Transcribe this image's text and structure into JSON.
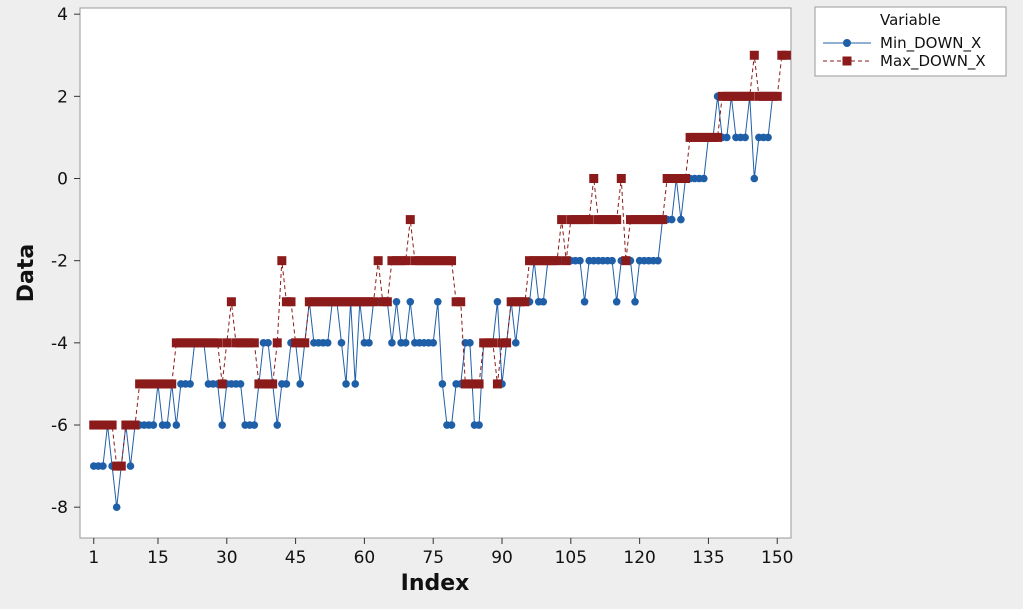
{
  "chart_data": {
    "type": "line",
    "title": "",
    "xlabel": "Index",
    "ylabel": "Data",
    "xlim": [
      -2,
      153
    ],
    "ylim": [
      -8.75,
      4.15
    ],
    "xticks": [
      1,
      15,
      30,
      45,
      60,
      75,
      90,
      105,
      120,
      135,
      150
    ],
    "yticks": [
      -8,
      -6,
      -4,
      -2,
      0,
      2,
      4
    ],
    "grid": false,
    "legend": {
      "title": "Variable",
      "position": "top-right"
    },
    "series": [
      {
        "name": "Min_DOWN_X",
        "color": "#1f5fa8",
        "marker": "circle",
        "linestyle": "solid",
        "values": [
          -7,
          -7,
          -7,
          -6,
          -7,
          -8,
          -7,
          -6,
          -7,
          -6,
          -6,
          -6,
          -6,
          -6,
          -5,
          -6,
          -6,
          -5,
          -6,
          -5,
          -5,
          -5,
          -4,
          -4,
          -4,
          -5,
          -5,
          -5,
          -6,
          -5,
          -5,
          -5,
          -5,
          -6,
          -6,
          -6,
          -5,
          -4,
          -4,
          -5,
          -6,
          -5,
          -5,
          -4,
          -4,
          -5,
          -4,
          -3,
          -4,
          -4,
          -4,
          -4,
          -3,
          -3,
          -4,
          -5,
          -3,
          -5,
          -3,
          -4,
          -4,
          -3,
          -3,
          -3,
          -3,
          -4,
          -3,
          -4,
          -4,
          -3,
          -4,
          -4,
          -4,
          -4,
          -4,
          -3,
          -5,
          -6,
          -6,
          -5,
          -5,
          -4,
          -4,
          -6,
          -6,
          -4,
          -4,
          -4,
          -3,
          -5,
          -4,
          -3,
          -4,
          -3,
          -3,
          -3,
          -2,
          -3,
          -3,
          -2,
          -2,
          -2,
          -2,
          -2,
          -2,
          -2,
          -2,
          -3,
          -2,
          -2,
          -2,
          -2,
          -2,
          -2,
          -3,
          -2,
          -2,
          -2,
          -3,
          -2,
          -2,
          -2,
          -2,
          -2,
          -1,
          -1,
          -1,
          0,
          -1,
          0,
          0,
          0,
          0,
          0,
          1,
          1,
          2,
          1,
          1,
          2,
          1,
          1,
          1,
          2,
          0,
          1,
          1,
          1,
          2
        ]
      },
      {
        "name": "Max_DOWN_X",
        "color": "#8b1a1a",
        "marker": "square",
        "linestyle": "dashed",
        "values": [
          -6,
          -6,
          -6,
          -6,
          -6,
          -7,
          -7,
          -6,
          -6,
          -6,
          -5,
          -5,
          -5,
          -5,
          -5,
          -5,
          -5,
          -5,
          -4,
          -4,
          -4,
          -4,
          -4,
          -4,
          -4,
          -4,
          -4,
          -4,
          -5,
          -4,
          -3,
          -4,
          -4,
          -4,
          -4,
          -4,
          -5,
          -5,
          -5,
          -5,
          -4,
          -2,
          -3,
          -3,
          -4,
          -4,
          -4,
          -3,
          -3,
          -3,
          -3,
          -3,
          -3,
          -3,
          -3,
          -3,
          -3,
          -3,
          -3,
          -3,
          -3,
          -3,
          -2,
          -3,
          -3,
          -2,
          -2,
          -2,
          -2,
          -1,
          -2,
          -2,
          -2,
          -2,
          -2,
          -2,
          -2,
          -2,
          -2,
          -3,
          -3,
          -5,
          -5,
          -5,
          -5,
          -4,
          -4,
          -4,
          -5,
          -4,
          -4,
          -3,
          -3,
          -3,
          -3,
          -2,
          -2,
          -2,
          -2,
          -2,
          -2,
          -2,
          -1,
          -2,
          -1,
          -1,
          -1,
          -1,
          -1,
          0,
          -1,
          -1,
          -1,
          -1,
          -1,
          0,
          -2,
          -1,
          -1,
          -1,
          -1,
          -1,
          -1,
          -1,
          -1,
          0,
          0,
          0,
          0,
          0,
          1,
          1,
          1,
          1,
          1,
          1,
          1,
          2,
          2,
          2,
          2,
          2,
          2,
          2,
          3,
          2,
          2,
          2,
          2,
          2,
          3,
          3
        ]
      }
    ]
  }
}
